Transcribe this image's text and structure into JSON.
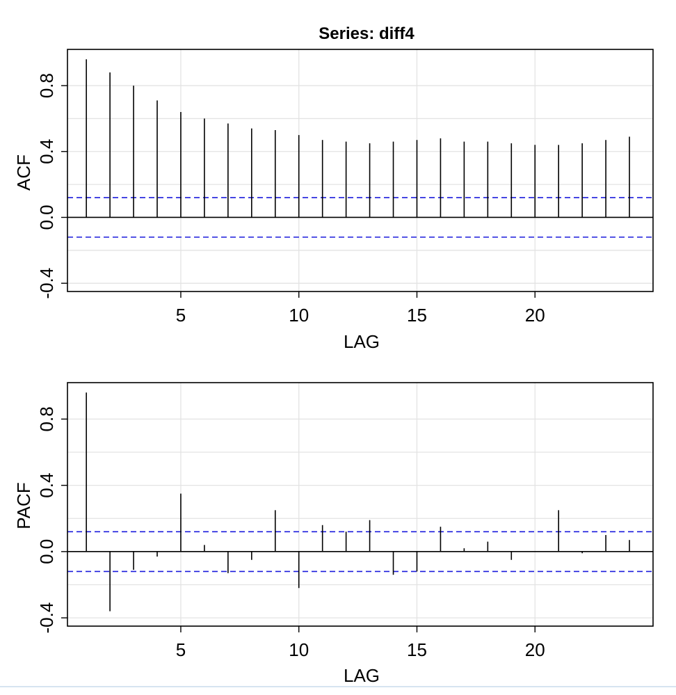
{
  "chart_data": [
    {
      "type": "bar",
      "title": "Series:  diff4",
      "xlabel": "LAG",
      "ylabel": "ACF",
      "xlim": [
        0.2,
        25.0
      ],
      "ylim": [
        -0.45,
        1.02
      ],
      "xticks": [
        "5",
        "10",
        "15",
        "20"
      ],
      "yticks": [
        "-0.4",
        "0.0",
        "0.4",
        "0.8"
      ],
      "grid": true,
      "confidence_band": 0.12,
      "lags": [
        1,
        2,
        3,
        4,
        5,
        6,
        7,
        8,
        9,
        10,
        11,
        12,
        13,
        14,
        15,
        16,
        17,
        18,
        19,
        20,
        21,
        22,
        23,
        24
      ],
      "values": [
        0.96,
        0.88,
        0.8,
        0.71,
        0.64,
        0.6,
        0.57,
        0.54,
        0.53,
        0.5,
        0.47,
        0.46,
        0.45,
        0.46,
        0.47,
        0.48,
        0.46,
        0.46,
        0.45,
        0.44,
        0.44,
        0.45,
        0.47,
        0.49
      ]
    },
    {
      "type": "bar",
      "title": "",
      "xlabel": "LAG",
      "ylabel": "PACF",
      "xlim": [
        0.2,
        25.0
      ],
      "ylim": [
        -0.45,
        1.02
      ],
      "xticks": [
        "5",
        "10",
        "15",
        "20"
      ],
      "yticks": [
        "-0.4",
        "0.0",
        "0.4",
        "0.8"
      ],
      "grid": true,
      "confidence_band": 0.12,
      "lags": [
        1,
        2,
        3,
        4,
        5,
        6,
        7,
        8,
        9,
        10,
        11,
        12,
        13,
        14,
        15,
        16,
        17,
        18,
        19,
        20,
        21,
        22,
        23,
        24
      ],
      "values": [
        0.96,
        -0.36,
        -0.11,
        -0.03,
        0.35,
        0.04,
        -0.13,
        -0.05,
        0.25,
        -0.22,
        0.16,
        0.12,
        0.19,
        -0.14,
        -0.12,
        0.15,
        0.02,
        0.06,
        -0.05,
        0.0,
        0.25,
        -0.01,
        0.1,
        0.07
      ]
    }
  ]
}
